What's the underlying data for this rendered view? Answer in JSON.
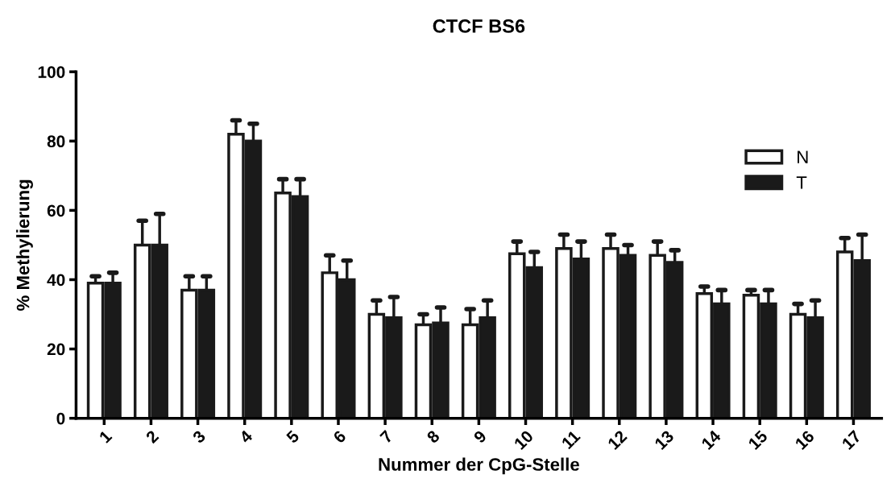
{
  "chart_data": {
    "type": "bar",
    "title": "CTCF BS6",
    "xlabel": "Nummer der CpG-Stelle",
    "ylabel": "% Methylierung",
    "categories": [
      "1",
      "2",
      "3",
      "4",
      "5",
      "6",
      "7",
      "8",
      "9",
      "10",
      "11",
      "12",
      "13",
      "14",
      "15",
      "16",
      "17"
    ],
    "series": [
      {
        "name": "N",
        "color": "#ffffff",
        "values": [
          39,
          50,
          37,
          82,
          65,
          42,
          30,
          27,
          27,
          47.5,
          49,
          49,
          47,
          36,
          35.5,
          30,
          48
        ],
        "errors": [
          [
            39,
            41
          ],
          [
            50,
            57
          ],
          [
            37,
            41
          ],
          [
            82,
            86
          ],
          [
            65,
            69
          ],
          [
            42,
            47
          ],
          [
            30,
            34
          ],
          [
            27,
            30
          ],
          [
            27,
            31.5
          ],
          [
            47.5,
            51
          ],
          [
            49,
            53
          ],
          [
            49,
            53
          ],
          [
            47,
            51
          ],
          [
            36,
            38
          ],
          [
            35.5,
            37
          ],
          [
            30,
            33
          ],
          [
            48,
            52
          ]
        ]
      },
      {
        "name": "T",
        "color": "#1a1a1a",
        "values": [
          39,
          50,
          37,
          80,
          64,
          40,
          29,
          27.5,
          29,
          43.5,
          46,
          47,
          45,
          33,
          33,
          29,
          45.5
        ],
        "errors": [
          [
            39,
            42
          ],
          [
            50,
            59
          ],
          [
            37,
            41
          ],
          [
            80,
            85
          ],
          [
            64,
            69
          ],
          [
            40,
            45.5
          ],
          [
            29,
            35
          ],
          [
            27.5,
            32
          ],
          [
            29,
            34
          ],
          [
            43.5,
            48
          ],
          [
            46,
            51
          ],
          [
            47,
            50
          ],
          [
            45,
            48.5
          ],
          [
            33,
            37
          ],
          [
            33,
            37
          ],
          [
            29,
            34
          ],
          [
            45.5,
            53
          ]
        ]
      }
    ],
    "ylim": [
      0,
      100
    ],
    "yticks": [
      0,
      20,
      40,
      60,
      80,
      100
    ],
    "grid": false,
    "legend": "top right"
  }
}
